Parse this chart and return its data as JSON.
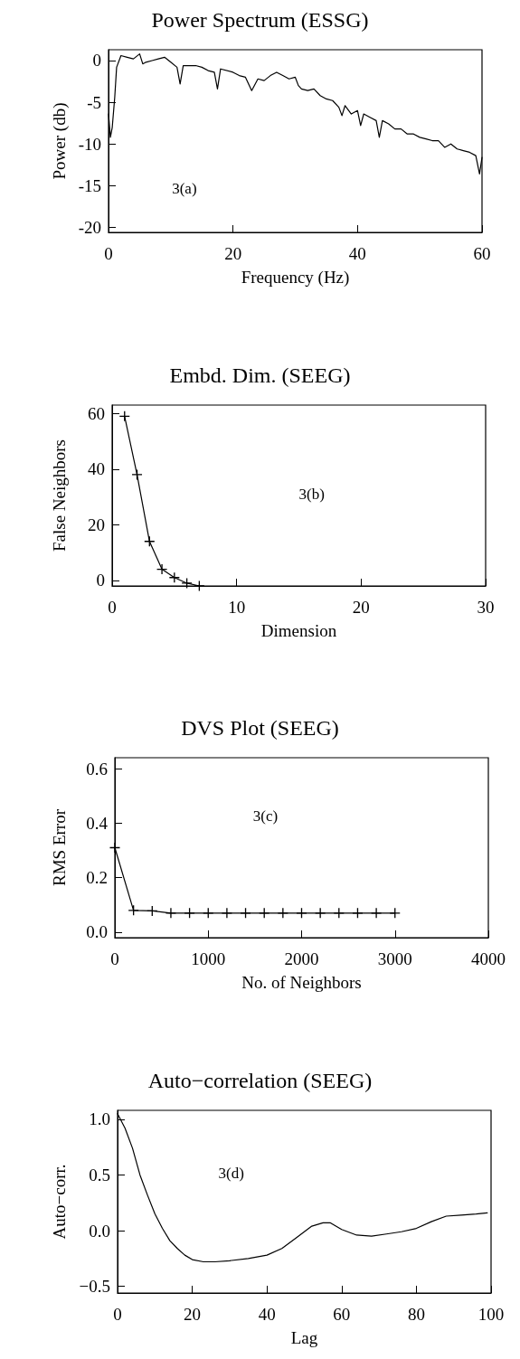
{
  "chart_data": [
    {
      "type": "line",
      "title": "Power Spectrum (ESSG)",
      "xlabel": "Frequency (Hz)",
      "ylabel": "Power (db)",
      "annotations": [
        "3(a)"
      ],
      "xlim": [
        0,
        60
      ],
      "xticks": [
        0,
        20,
        40,
        60
      ],
      "ylim": [
        -20.6,
        1.3
      ],
      "yticks": [
        0,
        -5,
        -10,
        -15,
        -20
      ],
      "grid": false,
      "marker": "none",
      "line_style": "solid",
      "series": [
        {
          "color": "#000000",
          "x": [
            0,
            0.3,
            0.6,
            1,
            1.3,
            2,
            3,
            4,
            5,
            5.5,
            6,
            7,
            8,
            9,
            10,
            11,
            11.5,
            12,
            14,
            15,
            16,
            17,
            17.5,
            18,
            20,
            21,
            22,
            23,
            24,
            25,
            26,
            27,
            28,
            29,
            30,
            30.5,
            31,
            32,
            33,
            34,
            35,
            36,
            37,
            37.5,
            38,
            39,
            40,
            40.5,
            41,
            42,
            43,
            43.5,
            44,
            45,
            46,
            47,
            48,
            49,
            50,
            51,
            52,
            53,
            54,
            55,
            56,
            57,
            58,
            59,
            59.6,
            60
          ],
          "values": [
            -6.4,
            -9.2,
            -8,
            -4.4,
            -0.8,
            0.6,
            0.4,
            0.2,
            0.8,
            -0.4,
            -0.2,
            0,
            0.2,
            0.4,
            -0.2,
            -0.8,
            -2.8,
            -0.6,
            -0.6,
            -0.8,
            -1.2,
            -1.4,
            -3.4,
            -1,
            -1.4,
            -1.8,
            -2,
            -3.6,
            -2.2,
            -2.4,
            -1.8,
            -1.4,
            -1.8,
            -2.2,
            -2,
            -3,
            -3.4,
            -3.6,
            -3.4,
            -4.2,
            -4.6,
            -4.8,
            -5.6,
            -6.6,
            -5.4,
            -6.4,
            -6,
            -7.8,
            -6.4,
            -6.8,
            -7.2,
            -9.2,
            -7.2,
            -7.6,
            -8.2,
            -8.2,
            -8.8,
            -8.8,
            -9.2,
            -9.4,
            -9.6,
            -9.6,
            -10.4,
            -10,
            -10.6,
            -10.8,
            -11,
            -11.4,
            -13.6,
            -11.6
          ]
        }
      ]
    },
    {
      "type": "line",
      "title": "Embd. Dim. (SEEG)",
      "xlabel": "Dimension",
      "ylabel": "False Neighbors",
      "annotations": [
        "3(b)"
      ],
      "xlim": [
        0,
        30
      ],
      "xticks": [
        0,
        10,
        20,
        30
      ],
      "ylim": [
        -2,
        63
      ],
      "yticks": [
        0,
        20,
        40,
        60
      ],
      "grid": false,
      "marker": "cross",
      "line_style": "solid",
      "series": [
        {
          "color": "#000000",
          "x": [
            1,
            2,
            3,
            4,
            5,
            6,
            7
          ],
          "values": [
            59,
            38,
            14,
            4,
            1,
            -1,
            -2
          ]
        }
      ]
    },
    {
      "type": "line",
      "title": "DVS Plot (SEEG)",
      "xlabel": "No. of Neighbors",
      "ylabel": "RMS Error",
      "annotations": [
        "3(c)"
      ],
      "xlim": [
        0,
        4000
      ],
      "xticks": [
        0,
        1000,
        2000,
        3000,
        4000
      ],
      "ylim": [
        -0.02,
        0.64
      ],
      "yticks": [
        {
          "value": 0,
          "label": "0.0"
        },
        {
          "value": 0.2,
          "label": "0.2"
        },
        {
          "value": 0.4,
          "label": "0.4"
        },
        {
          "value": 0.6,
          "label": "0.6"
        }
      ],
      "grid": false,
      "marker": "cross",
      "line_style": "solid",
      "series": [
        {
          "color": "#000000",
          "x": [
            0,
            200,
            400,
            600,
            800,
            1000,
            1200,
            1400,
            1600,
            1800,
            2000,
            2200,
            2400,
            2600,
            2800,
            3000
          ],
          "values": [
            0.31,
            0.08,
            0.078,
            0.07,
            0.07,
            0.07,
            0.07,
            0.07,
            0.07,
            0.07,
            0.07,
            0.07,
            0.07,
            0.07,
            0.07,
            0.07
          ]
        }
      ]
    },
    {
      "type": "line",
      "title": "Auto−correlation (SEEG)",
      "xlabel": "Lag",
      "ylabel": "Auto−corr.",
      "annotations": [
        "3(d)"
      ],
      "xlim": [
        0,
        100
      ],
      "xticks": [
        0,
        20,
        40,
        60,
        80,
        100
      ],
      "ylim": [
        -0.56,
        1.08
      ],
      "yticks": [
        {
          "value": 1,
          "label": "1.0"
        },
        {
          "value": 0.5,
          "label": "0.5"
        },
        {
          "value": 0,
          "label": "0.0"
        },
        {
          "value": -0.5,
          "label": "−0.5"
        }
      ],
      "grid": false,
      "marker": "none",
      "line_style": "solid",
      "series": [
        {
          "color": "#000000",
          "x": [
            0,
            2,
            4,
            6,
            8,
            10,
            12,
            14,
            16,
            18,
            20,
            23,
            26,
            30,
            35,
            40,
            44,
            48,
            52,
            55,
            57,
            60,
            64,
            68,
            72,
            76,
            80,
            84,
            88,
            92,
            96,
            99
          ],
          "values": [
            1.05,
            0.92,
            0.74,
            0.5,
            0.32,
            0.15,
            0.02,
            -0.09,
            -0.16,
            -0.22,
            -0.26,
            -0.28,
            -0.28,
            -0.27,
            -0.25,
            -0.22,
            -0.16,
            -0.06,
            0.04,
            0.07,
            0.07,
            0.01,
            -0.04,
            -0.05,
            -0.03,
            -0.01,
            0.02,
            0.08,
            0.13,
            0.14,
            0.15,
            0.16
          ]
        }
      ]
    }
  ]
}
